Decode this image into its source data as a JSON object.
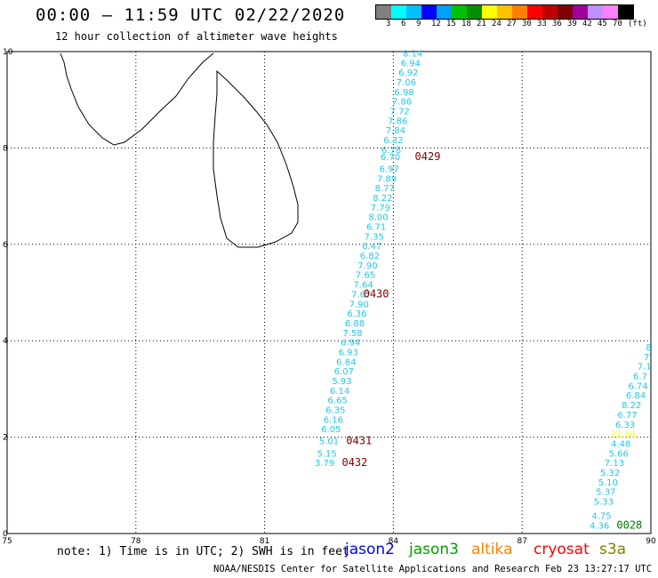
{
  "title": "00:00 – 11:59 UTC 02/22/2020",
  "subtitle": "12 hour collection of altimeter wave heights",
  "legend": {
    "colors": [
      "#808080",
      "#00ffff",
      "#00bfff",
      "#0000ff",
      "#00a0ff",
      "#00c000",
      "#009000",
      "#ffff00",
      "#ffc000",
      "#ff8000",
      "#ff0000",
      "#c00000",
      "#800000",
      "#a000a0",
      "#c090ff",
      "#ff80ff",
      "#000000"
    ],
    "labels": [
      "3",
      "6",
      "9",
      "12",
      "15",
      "18",
      "21",
      "24",
      "27",
      "30",
      "33",
      "36",
      "39",
      "42",
      "45",
      "70",
      "(ft)"
    ]
  },
  "map": {
    "lon_range": [
      75,
      90
    ],
    "lat_range": [
      0,
      10
    ],
    "x_ticks": [
      "75",
      "78",
      "81",
      "84",
      "87",
      "90"
    ],
    "y_ticks": [
      "0",
      "2",
      "4",
      "6",
      "8",
      "10"
    ],
    "track_a": {
      "color": "#20c8e8",
      "points": [
        {
          "lon": 84.45,
          "lat": 9.9,
          "v": "8.14"
        },
        {
          "lon": 84.4,
          "lat": 9.7,
          "v": "6.94"
        },
        {
          "lon": 84.35,
          "lat": 9.5,
          "v": "6.92"
        },
        {
          "lon": 84.3,
          "lat": 9.3,
          "v": "7.06"
        },
        {
          "lon": 84.25,
          "lat": 9.1,
          "v": "6.98"
        },
        {
          "lon": 84.2,
          "lat": 8.9,
          "v": "7.86"
        },
        {
          "lon": 84.15,
          "lat": 8.7,
          "v": "7.72"
        },
        {
          "lon": 84.1,
          "lat": 8.5,
          "v": "7.86"
        },
        {
          "lon": 84.05,
          "lat": 8.3,
          "v": "7.84"
        },
        {
          "lon": 84.0,
          "lat": 8.1,
          "v": "6.32"
        },
        {
          "lon": 83.95,
          "lat": 7.9,
          "v": "6.78"
        },
        {
          "lon": 83.93,
          "lat": 7.75,
          "v": "6.70"
        },
        {
          "lon": 83.9,
          "lat": 7.5,
          "v": "6.97"
        },
        {
          "lon": 83.85,
          "lat": 7.3,
          "v": "7.89"
        },
        {
          "lon": 83.8,
          "lat": 7.1,
          "v": "8.77"
        },
        {
          "lon": 83.75,
          "lat": 6.9,
          "v": "8.22"
        },
        {
          "lon": 83.7,
          "lat": 6.7,
          "v": "7.79"
        },
        {
          "lon": 83.65,
          "lat": 6.5,
          "v": "8.00"
        },
        {
          "lon": 83.6,
          "lat": 6.3,
          "v": "6.71"
        },
        {
          "lon": 83.55,
          "lat": 6.1,
          "v": "7.35"
        },
        {
          "lon": 83.5,
          "lat": 5.9,
          "v": "6.47"
        },
        {
          "lon": 83.45,
          "lat": 5.7,
          "v": "6.82"
        },
        {
          "lon": 83.4,
          "lat": 5.5,
          "v": "7.90"
        },
        {
          "lon": 83.35,
          "lat": 5.3,
          "v": "7.65"
        },
        {
          "lon": 83.3,
          "lat": 5.1,
          "v": "7.64"
        },
        {
          "lon": 83.25,
          "lat": 4.9,
          "v": "7.67"
        },
        {
          "lon": 83.2,
          "lat": 4.7,
          "v": "7.90"
        },
        {
          "lon": 83.15,
          "lat": 4.5,
          "v": "6.36"
        },
        {
          "lon": 83.1,
          "lat": 4.3,
          "v": "6.88"
        },
        {
          "lon": 83.05,
          "lat": 4.1,
          "v": "7.58"
        },
        {
          "lon": 83.0,
          "lat": 3.9,
          "v": "6.94"
        },
        {
          "lon": 82.95,
          "lat": 3.7,
          "v": "6.93"
        },
        {
          "lon": 82.9,
          "lat": 3.5,
          "v": "6.84"
        },
        {
          "lon": 82.85,
          "lat": 3.3,
          "v": "6.07"
        },
        {
          "lon": 82.8,
          "lat": 3.1,
          "v": "5.93"
        },
        {
          "lon": 82.75,
          "lat": 2.9,
          "v": "6.14"
        },
        {
          "lon": 82.7,
          "lat": 2.7,
          "v": "6.65"
        },
        {
          "lon": 82.65,
          "lat": 2.5,
          "v": "6.35"
        },
        {
          "lon": 82.6,
          "lat": 2.3,
          "v": "6.16"
        },
        {
          "lon": 82.55,
          "lat": 2.1,
          "v": "6.05"
        },
        {
          "lon": 82.5,
          "lat": 1.85,
          "v": "5.01"
        },
        {
          "lon": 82.45,
          "lat": 1.6,
          "v": "5.15"
        },
        {
          "lon": 82.4,
          "lat": 1.4,
          "v": "3.79"
        }
      ]
    },
    "track_b": {
      "color": "#20c8e8",
      "points": [
        {
          "lon": 89.95,
          "lat": 3.8,
          "v": "8"
        },
        {
          "lon": 89.9,
          "lat": 3.6,
          "v": "7"
        },
        {
          "lon": 89.85,
          "lat": 3.4,
          "v": "7.1"
        },
        {
          "lon": 89.75,
          "lat": 3.2,
          "v": "6.7"
        },
        {
          "lon": 89.7,
          "lat": 3.0,
          "v": "6.74"
        },
        {
          "lon": 89.65,
          "lat": 2.8,
          "v": "6.84"
        },
        {
          "lon": 89.55,
          "lat": 2.6,
          "v": "8.22"
        },
        {
          "lon": 89.45,
          "lat": 2.4,
          "v": "6.77"
        },
        {
          "lon": 89.4,
          "lat": 2.2,
          "v": "6.33"
        },
        {
          "lon": 89.35,
          "lat": 2.0,
          "v": "22.86",
          "color": "#ffff00"
        },
        {
          "lon": 89.3,
          "lat": 1.8,
          "v": "4.48"
        },
        {
          "lon": 89.25,
          "lat": 1.6,
          "v": "5.66"
        },
        {
          "lon": 89.15,
          "lat": 1.4,
          "v": "7.13"
        },
        {
          "lon": 89.05,
          "lat": 1.2,
          "v": "5.32"
        },
        {
          "lon": 89.0,
          "lat": 1.0,
          "v": "5.10"
        },
        {
          "lon": 88.95,
          "lat": 0.8,
          "v": "5.37"
        },
        {
          "lon": 88.9,
          "lat": 0.6,
          "v": "5.33"
        },
        {
          "lon": 88.85,
          "lat": 0.3,
          "v": "4.75"
        },
        {
          "lon": 88.8,
          "lat": 0.1,
          "v": "4.36"
        }
      ]
    },
    "times": [
      {
        "lon": 84.5,
        "lat": 7.75,
        "v": "0429",
        "color": "#800000"
      },
      {
        "lon": 83.3,
        "lat": 4.9,
        "v": "0430",
        "color": "#800000"
      },
      {
        "lon": 82.9,
        "lat": 1.85,
        "v": "0431",
        "color": "#800000"
      },
      {
        "lon": 82.8,
        "lat": 1.4,
        "v": "0432",
        "color": "#800000"
      },
      {
        "lon": 89.2,
        "lat": 0.1,
        "v": "0028",
        "color": "#008000"
      }
    ]
  },
  "note": "note: 1) Time is in UTC; 2) SWH is in feet",
  "satellites": [
    {
      "name": "jason2",
      "color": "#0000ff"
    },
    {
      "name": "jason3",
      "color": "#00a000"
    },
    {
      "name": "altika",
      "color": "#ff8000"
    },
    {
      "name": "cryosat",
      "color": "#ff0000"
    },
    {
      "name": "s3a",
      "color": "#808000"
    }
  ],
  "footer": "NOAA/NESDIS Center for Satellite Applications and Research    Feb 23 13:27:17 UTC 2020"
}
